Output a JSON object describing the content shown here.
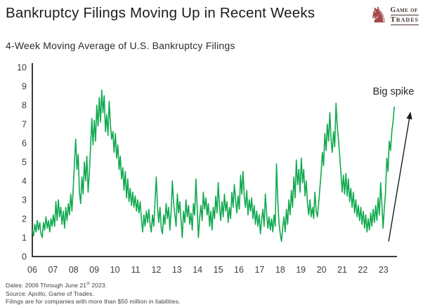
{
  "header": {
    "title": "Bankruptcy Filings Moving Up in Recent Weeks",
    "logo": {
      "icon": "chess-knight",
      "line1": "Game of",
      "line2": "Trades",
      "color": "#a34b4b"
    }
  },
  "subtitle": "4-Week Moving Average of U.S. Bankruptcy Filings",
  "chart_data": {
    "type": "line",
    "title": "4-Week Moving Average of U.S. Bankruptcy Filings",
    "xlabel": "",
    "ylabel": "",
    "xlim": [
      2006,
      2023.8
    ],
    "ylim": [
      0,
      10
    ],
    "grid": false,
    "legend": false,
    "y_ticks": [
      0,
      1,
      2,
      3,
      4,
      5,
      6,
      7,
      8,
      9,
      10
    ],
    "x_tick_years": [
      2006,
      2007,
      2008,
      2009,
      2010,
      2011,
      2012,
      2013,
      2014,
      2015,
      2016,
      2017,
      2018,
      2019,
      2020,
      2021,
      2022,
      2023
    ],
    "x_tick_labels": [
      "06",
      "07",
      "08",
      "09",
      "10",
      "11",
      "12",
      "13",
      "14",
      "15",
      "16",
      "17",
      "18",
      "19",
      "20",
      "21",
      "22",
      "23"
    ],
    "series": [
      {
        "name": "U.S. bankruptcy filings, 4-week moving average",
        "color": "#10a94f",
        "x_start": 2006.0,
        "x_step": 0.06,
        "values": [
          1.4,
          1.1,
          1.7,
          1.3,
          1.9,
          1.4,
          1.8,
          1.2,
          1.0,
          1.8,
          1.4,
          2.1,
          1.5,
          1.9,
          1.3,
          2.0,
          1.6,
          2.2,
          1.6,
          2.9,
          1.9,
          3.0,
          2.1,
          2.6,
          1.7,
          2.4,
          1.5,
          2.6,
          1.9,
          2.8,
          2.2,
          3.3,
          2.4,
          3.6,
          5.0,
          6.2,
          4.6,
          5.4,
          3.4,
          2.8,
          4.2,
          3.3,
          5.0,
          4.0,
          5.3,
          3.4,
          4.4,
          5.8,
          7.3,
          5.9,
          7.2,
          6.1,
          8.0,
          6.9,
          8.4,
          7.1,
          8.8,
          7.6,
          8.5,
          6.6,
          7.5,
          6.4,
          8.2,
          7.0,
          6.2,
          6.6,
          5.5,
          6.5,
          5.2,
          5.9,
          4.6,
          5.3,
          4.1,
          4.7,
          3.5,
          4.5,
          3.1,
          4.1,
          2.9,
          3.6,
          2.7,
          3.4,
          2.6,
          3.2,
          2.4,
          3.0,
          2.3,
          2.9,
          2.0,
          1.3,
          2.2,
          1.6,
          2.4,
          1.8,
          2.5,
          1.7,
          1.3,
          2.2,
          1.6,
          2.9,
          4.2,
          2.6,
          1.8,
          2.6,
          1.5,
          1.2,
          2.2,
          1.7,
          2.8,
          2.0,
          2.6,
          1.4,
          2.4,
          4.0,
          2.8,
          2.2,
          1.6,
          3.3,
          2.3,
          2.9,
          1.9,
          1.0,
          2.4,
          1.8,
          3.0,
          2.1,
          2.7,
          1.7,
          2.3,
          1.4,
          2.8,
          2.2,
          4.1,
          2.6,
          1.0,
          2.0,
          2.7,
          1.9,
          3.4,
          2.5,
          3.1,
          2.2,
          2.8,
          1.6,
          2.4,
          1.4,
          2.6,
          2.0,
          3.2,
          2.3,
          3.9,
          2.6,
          1.9,
          2.9,
          2.1,
          3.3,
          2.4,
          2.9,
          1.8,
          2.6,
          2.0,
          3.4,
          2.6,
          3.8,
          3.0,
          2.3,
          3.2,
          2.5,
          4.3,
          3.3,
          4.5,
          3.2,
          2.6,
          3.5,
          2.2,
          3.0,
          2.4,
          3.1,
          2.0,
          2.7,
          1.7,
          2.4,
          1.6,
          2.2,
          1.2,
          1.9,
          2.5,
          1.6,
          3.3,
          2.3,
          1.5,
          2.1,
          1.4,
          2.0,
          1.3,
          2.2,
          1.6,
          4.9,
          3.0,
          1.8,
          1.2,
          0.8,
          1.5,
          2.1,
          1.3,
          2.5,
          1.7,
          3.0,
          2.2,
          3.5,
          2.6,
          4.2,
          3.1,
          5.1,
          3.8,
          4.6,
          3.4,
          5.2,
          3.9,
          4.6,
          3.2,
          4.0,
          2.8,
          2.2,
          3.0,
          2.1,
          2.6,
          2.0,
          3.4,
          2.4,
          2.1,
          2.8,
          3.6,
          4.4,
          5.5,
          4.8,
          6.5,
          5.6,
          7.0,
          6.1,
          7.6,
          6.2,
          5.5,
          6.6,
          5.8,
          8.1,
          6.9,
          6.2,
          5.3,
          4.4,
          3.4,
          4.3,
          3.3,
          4.4,
          3.2,
          4.1,
          2.9,
          3.6,
          2.6,
          3.4,
          2.3,
          3.0,
          2.1,
          2.7,
          1.9,
          2.6,
          1.7,
          2.4,
          1.5,
          2.2,
          1.3,
          2.0,
          1.4,
          2.3,
          1.6,
          2.5,
          1.8,
          2.7,
          1.9,
          3.1,
          2.2,
          3.9,
          2.8,
          1.5,
          2.6,
          3.4,
          5.2,
          4.5,
          6.1,
          5.6,
          6.6,
          7.1,
          7.9
        ]
      }
    ],
    "annotation": {
      "text": "Big spike",
      "text_x": 2023.48,
      "text_y": 8.55,
      "arrow": {
        "x1": 2023.25,
        "y1": 0.8,
        "x2": 2024.3,
        "y2": 7.6
      }
    }
  },
  "footer": {
    "dates_prefix": "Dates: 2006 Through June 21",
    "dates_sup": "st",
    "dates_suffix": " 2023.",
    "source": "Source: Apollo, Game of Trades.",
    "note": "Filings are for companies with more than $50 million in liabilities."
  }
}
